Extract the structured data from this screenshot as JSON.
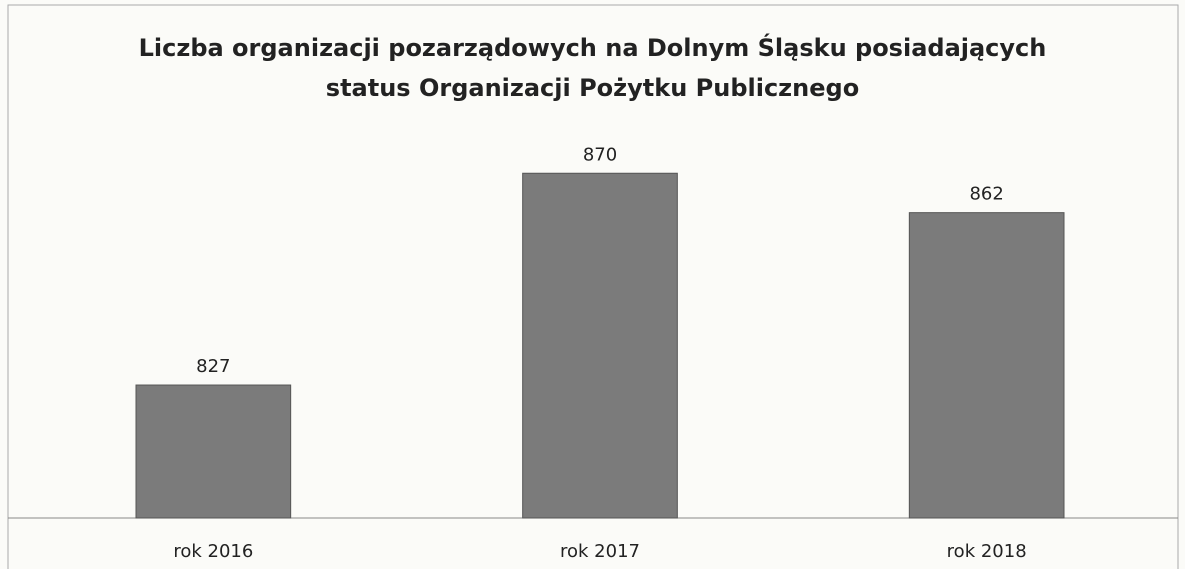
{
  "chart_data": {
    "type": "bar",
    "title": "Liczba organizacji pozarządowych na Dolnym Śląsku posiadających\nstatus Organizacji Pożytku Publicznego",
    "categories": [
      "rok 2016",
      "rok 2017",
      "rok 2018"
    ],
    "values": [
      827,
      870,
      862
    ],
    "color": "#7b7b7b",
    "ylim": [
      800,
      880
    ]
  }
}
